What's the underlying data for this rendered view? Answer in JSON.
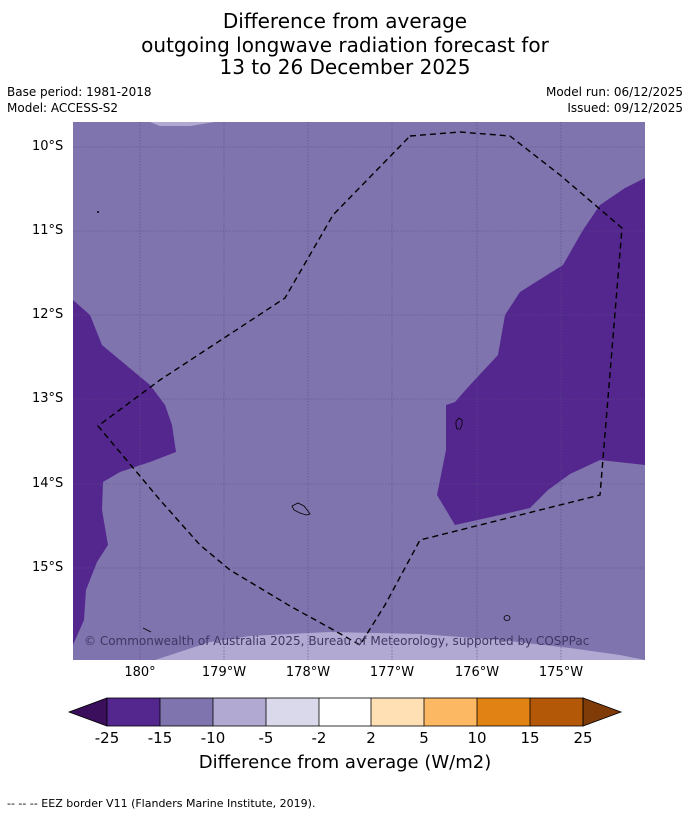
{
  "title": {
    "line1": "Difference from average",
    "line2": "outgoing longwave radiation forecast for",
    "line3": "13 to 26 December 2025"
  },
  "meta": {
    "base_period": "Base period: 1981-2018",
    "model": "Model: ACCESS-S2",
    "model_run": "Model run: 06/12/2025",
    "issued": "Issued: 09/12/2025"
  },
  "map": {
    "latitude_labels": [
      "10°S",
      "11°S",
      "12°S",
      "13°S",
      "14°S",
      "15°S"
    ],
    "longitude_labels": [
      "180°",
      "179°W",
      "178°W",
      "177°W",
      "176°W",
      "175°W"
    ],
    "copyright": "© Commonwealth of Australia 2025, Bureau of Meteorology, supported by COSPPac"
  },
  "colorbar": {
    "ticks": [
      "-25",
      "-15",
      "-10",
      "-5",
      "-2",
      "2",
      "5",
      "10",
      "15",
      "25"
    ],
    "colors": {
      "below": "#3b0f5c",
      "c1": "#54278f",
      "c2": "#7f74ad",
      "c3": "#b1a9d2",
      "c4": "#d9d9eb",
      "c5": "#ffffff",
      "c6": "#fee0b4",
      "c7": "#fdb863",
      "c8": "#e08214",
      "c9": "#b35806",
      "above": "#7f3b08"
    },
    "label": "Difference from average (W/m2)"
  },
  "footnote": "--  --  -- EEZ border V11 (Flanders Marine Institute, 2019)."
}
